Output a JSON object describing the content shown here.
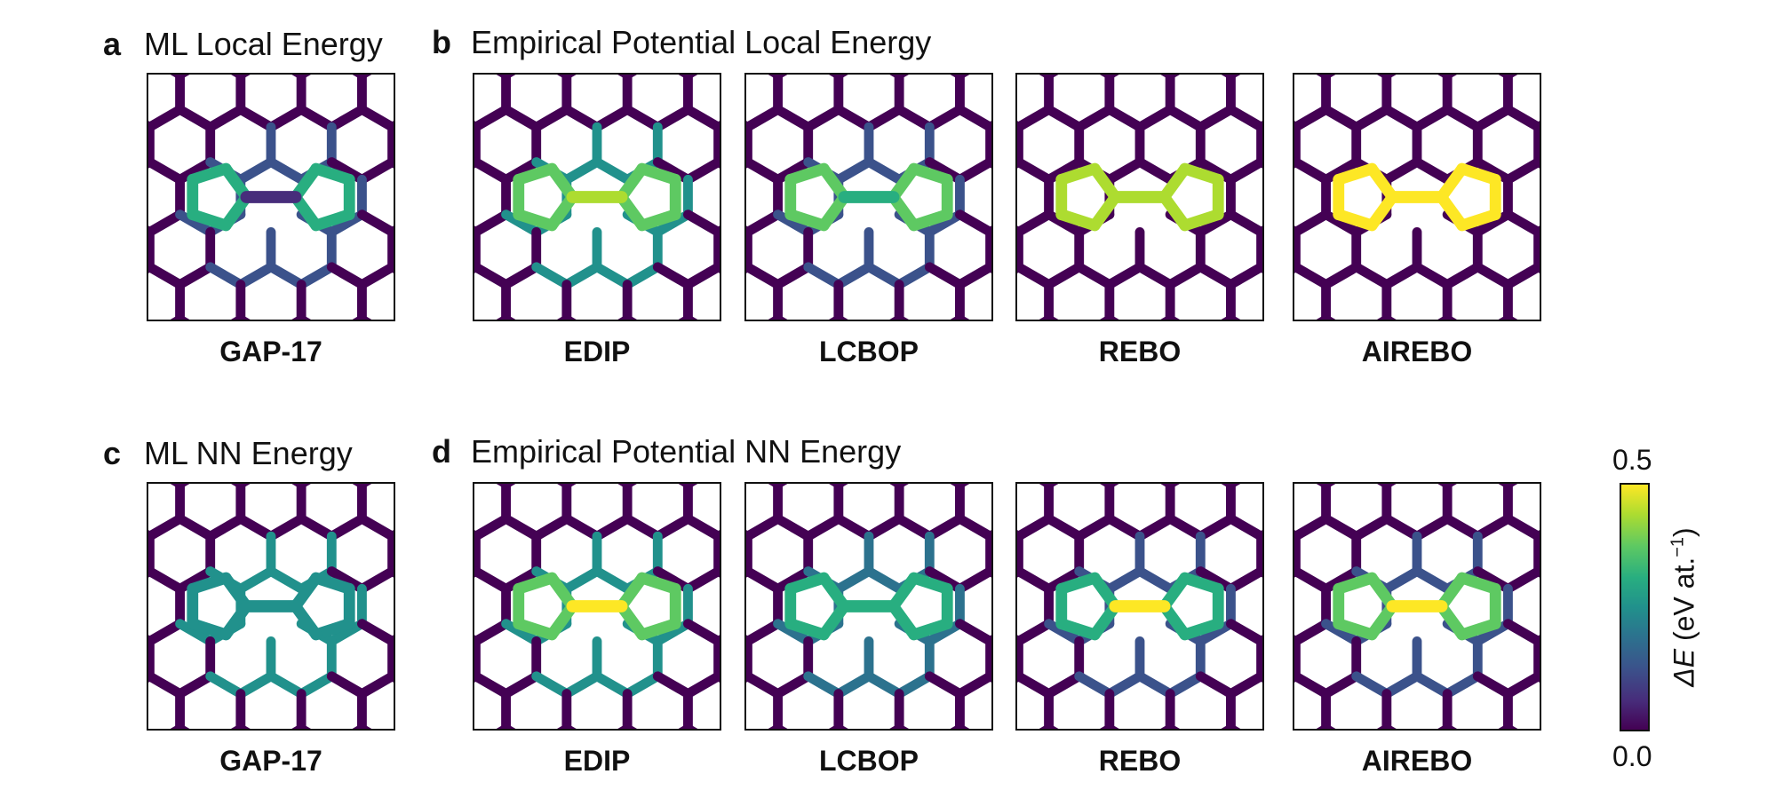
{
  "panels": {
    "a": {
      "letter": "a",
      "title": "ML Local Energy"
    },
    "b": {
      "letter": "b",
      "title": "Empirical Potential Local Energy"
    },
    "c": {
      "letter": "c",
      "title": "ML NN Energy"
    },
    "d": {
      "letter": "d",
      "title": "Empirical Potential NN Energy"
    }
  },
  "row1_labels": [
    "GAP-17",
    "EDIP",
    "LCBOP",
    "REBO",
    "AIREBO"
  ],
  "row2_labels": [
    "GAP-17",
    "EDIP",
    "LCBOP",
    "REBO",
    "AIREBO"
  ],
  "colorbar": {
    "max_label": "0.5",
    "min_label": "0.0",
    "quantity": "ΔE",
    "unit_text": " (eV at.",
    "unit_exp": "−1",
    "unit_close": ")",
    "colormap": [
      "#440154",
      "#472d7b",
      "#3b528b",
      "#2c728e",
      "#21918c",
      "#28ae80",
      "#5ec962",
      "#addc30",
      "#fde725"
    ],
    "range": [
      0.0,
      0.5
    ]
  },
  "defect_levels": {
    "row1": [
      {
        "ring": 0.6,
        "bridge": 0.1,
        "outer": 0.25
      },
      {
        "ring": 0.75,
        "bridge": 0.92,
        "outer": 0.45
      },
      {
        "ring": 0.78,
        "bridge": 0.65,
        "outer": 0.2
      },
      {
        "ring": 0.9,
        "bridge": 0.9,
        "outer": 0.05
      },
      {
        "ring": 1.0,
        "bridge": 1.0,
        "outer": 0.05
      }
    ],
    "row2": [
      {
        "ring": 0.5,
        "bridge": 0.5,
        "outer": 0.45
      },
      {
        "ring": 0.75,
        "bridge": 0.95,
        "outer": 0.45
      },
      {
        "ring": 0.58,
        "bridge": 0.6,
        "outer": 0.35
      },
      {
        "ring": 0.68,
        "bridge": 0.95,
        "outer": 0.3
      },
      {
        "ring": 0.72,
        "bridge": 0.95,
        "outer": 0.3
      }
    ]
  }
}
